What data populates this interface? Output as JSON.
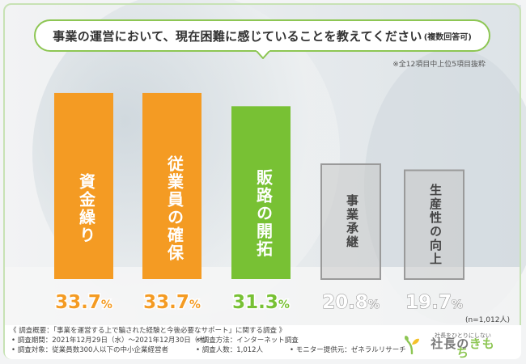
{
  "question": {
    "main": "事業の運営において、現在困難に感じていることを教えてください",
    "sub": "(複数回答可)"
  },
  "note": "※全12項目中上位5項目抜粋",
  "sample_size": "(n=1,012人)",
  "colors": {
    "orange": "#f49b23",
    "green": "#78c134",
    "gray": "#c9c9c9",
    "bubble_border": "#8dc653"
  },
  "chart_data": {
    "type": "bar",
    "categories": [
      "資金繰り",
      "従業員の確保",
      "販路の開拓",
      "事業承継",
      "生産性の向上"
    ],
    "values": [
      33.7,
      33.7,
      31.3,
      20.8,
      19.7
    ],
    "value_labels": [
      "33.7%",
      "33.7%",
      "31.3%",
      "20.8%",
      "19.7%"
    ],
    "bar_colors": [
      "#f49b23",
      "#f49b23",
      "#78c134",
      "#c9c9c9",
      "#c9c9c9"
    ],
    "title": "事業の運営において、現在困難に感じていることを教えてください(複数回答可)",
    "ylim": [
      0,
      37.5
    ],
    "grid": false,
    "legend": "none"
  },
  "footer": {
    "title": "《 調査概要：「事業を運営する上で騙された経験と今後必要なサポート」に関する調査 》",
    "period": "• 調査期間：2021年12月29日（水）～2021年12月30日（木）",
    "method": "• 調査方法：インターネット調査",
    "target": "• 調査対象：従業員数300人以下の中小企業経営者",
    "count": "• 調査人数：1,012人",
    "provider": "• モニター提供元：ゼネラルリサーチ"
  },
  "logo": {
    "tagline": "社長をひとりにしない",
    "name_prefix": "社長の",
    "name_suffix": "きもち"
  }
}
